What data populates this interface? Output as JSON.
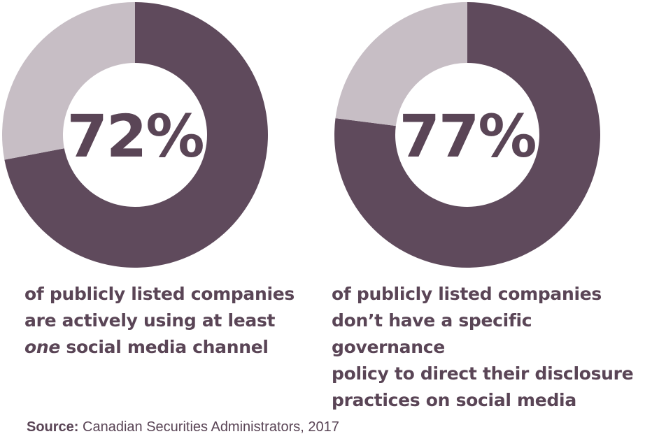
{
  "colors": {
    "primary": "#5f4a5c",
    "remainder": "#c7bec5",
    "text": "#5a4556"
  },
  "chart_data": [
    {
      "type": "pie",
      "variant": "donut",
      "value_label": "72%",
      "slices": [
        {
          "value": 72,
          "color": "#5f4a5c"
        },
        {
          "value": 28,
          "color": "#c7bec5"
        }
      ],
      "caption_lines": [
        "of publicly listed companies",
        "are actively using at least",
        "one social media channel"
      ],
      "caption_emphasis": "one",
      "caption_rest": " social media channel"
    },
    {
      "type": "pie",
      "variant": "donut",
      "value_label": "77%",
      "slices": [
        {
          "value": 77,
          "color": "#5f4a5c"
        },
        {
          "value": 23,
          "color": "#c7bec5"
        }
      ],
      "caption_lines": [
        "of publicly listed companies",
        "don’t have a specific governance",
        "policy to direct their disclosure",
        "practices on social media"
      ]
    }
  ],
  "source": {
    "label": "Source:",
    "text": " Canadian Securities Administrators, 2017"
  }
}
